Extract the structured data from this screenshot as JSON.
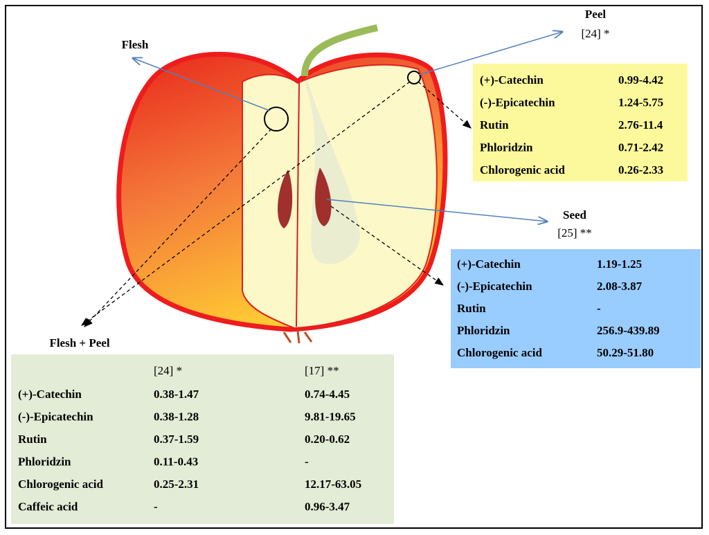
{
  "labels": {
    "flesh": "Flesh",
    "peel": "Peel",
    "peel_ref": "[24] *",
    "seed": "Seed",
    "seed_ref": "[25] **",
    "flesh_peel": "Flesh + Peel"
  },
  "peel": {
    "rows": [
      [
        "(+)-Catechin",
        "0.99-4.42"
      ],
      [
        "(-)-Epicatechin",
        "1.24-5.75"
      ],
      [
        "Rutin",
        "2.76-11.4"
      ],
      [
        "Phloridzin",
        "0.71-2.42"
      ],
      [
        "Chlorogenic acid",
        "0.26-2.33"
      ]
    ]
  },
  "seed": {
    "rows": [
      [
        "(+)-Catechin",
        "1.19-1.25"
      ],
      [
        "(-)-Epicatechin",
        "2.08-3.87"
      ],
      [
        "Rutin",
        "-"
      ],
      [
        "Phloridzin",
        "256.9-439.89"
      ],
      [
        "Chlorogenic acid",
        "50.29-51.80"
      ]
    ]
  },
  "flesh_peel": {
    "headers": [
      "[24] *",
      "[17] **"
    ],
    "rows": [
      [
        "(+)-Catechin",
        "0.38-1.47",
        "0.74-4.45"
      ],
      [
        "(-)-Epicatechin",
        "0.38-1.28",
        "9.81-19.65"
      ],
      [
        "Rutin",
        "0.37-1.59",
        "0.20-0.62"
      ],
      [
        "Phloridzin",
        "0.11-0.43",
        "-"
      ],
      [
        "Chlorogenic acid",
        "0.25-2.31",
        "12.17-63.05"
      ],
      [
        "Caffeic acid",
        "-",
        "0.96-3.47"
      ]
    ]
  }
}
